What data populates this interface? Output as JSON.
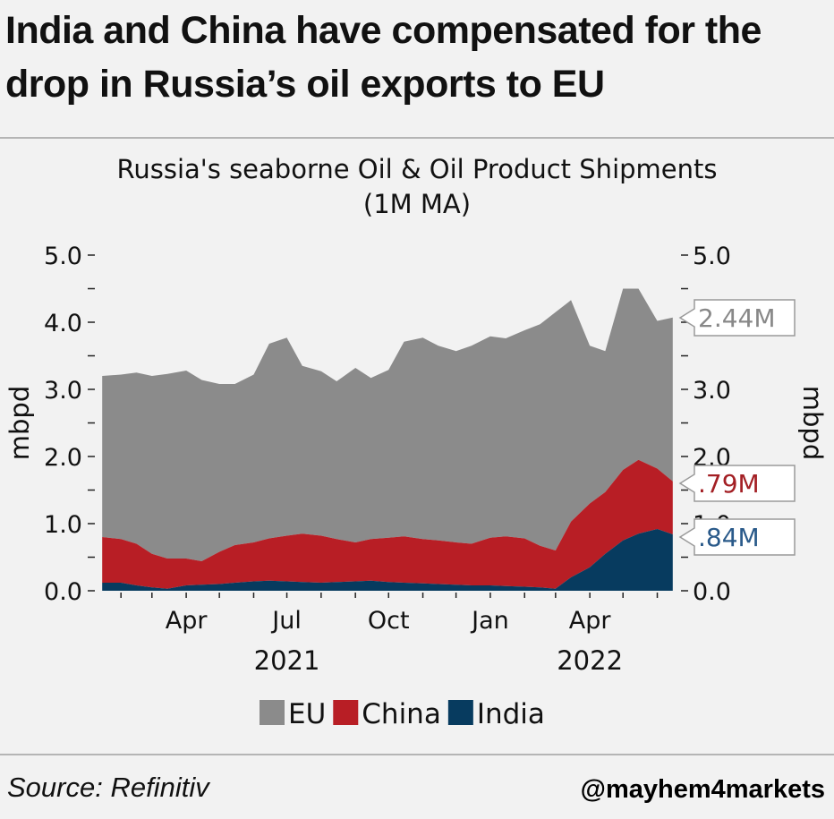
{
  "headline": "India and China have compensated for the drop in Russia’s oil exports to EU",
  "source": "Source: Refinitiv",
  "handle": "@mayhem4markets",
  "chart_data": {
    "type": "area",
    "stacked": true,
    "title": "Russia's seaborne Oil & Oil Product Shipments\n(1M MA)",
    "ylabel_left": "mbpd",
    "ylabel_right": "mbpd",
    "ylim": [
      0,
      5
    ],
    "yticks": [
      "0.0",
      "1.0",
      "2.0",
      "3.0",
      "4.0",
      "5.0"
    ],
    "x": [
      "2021-01-15",
      "2021-02-01",
      "2021-02-15",
      "2021-03-01",
      "2021-03-15",
      "2021-04-01",
      "2021-04-15",
      "2021-05-01",
      "2021-05-15",
      "2021-06-01",
      "2021-06-15",
      "2021-07-01",
      "2021-07-15",
      "2021-08-01",
      "2021-08-15",
      "2021-09-01",
      "2021-09-15",
      "2021-10-01",
      "2021-10-15",
      "2021-11-01",
      "2021-11-15",
      "2021-12-01",
      "2021-12-15",
      "2022-01-01",
      "2022-01-15",
      "2022-02-01",
      "2022-02-15",
      "2022-03-01",
      "2022-03-15",
      "2022-04-01",
      "2022-04-15",
      "2022-05-01",
      "2022-05-15",
      "2022-06-01",
      "2022-06-15"
    ],
    "xticks": [
      {
        "date": "2021-04-01",
        "label": "Apr"
      },
      {
        "date": "2021-07-01",
        "label": "Jul"
      },
      {
        "date": "2021-10-01",
        "label": "Oct"
      },
      {
        "date": "2022-01-01",
        "label": "Jan"
      },
      {
        "date": "2022-04-01",
        "label": "Apr"
      }
    ],
    "year_labels": [
      {
        "date": "2021-07-01",
        "label": "2021"
      },
      {
        "date": "2022-04-01",
        "label": "2022"
      }
    ],
    "series": [
      {
        "name": "India",
        "color": "#073b5f",
        "values": [
          0.12,
          0.12,
          0.08,
          0.05,
          0.03,
          0.08,
          0.09,
          0.1,
          0.12,
          0.14,
          0.15,
          0.14,
          0.13,
          0.12,
          0.13,
          0.14,
          0.15,
          0.13,
          0.12,
          0.11,
          0.1,
          0.09,
          0.08,
          0.08,
          0.07,
          0.06,
          0.05,
          0.03,
          0.2,
          0.35,
          0.55,
          0.75,
          0.85,
          0.92,
          0.84
        ]
      },
      {
        "name": "China",
        "color": "#b81e25",
        "values": [
          0.68,
          0.65,
          0.62,
          0.5,
          0.45,
          0.4,
          0.35,
          0.48,
          0.56,
          0.58,
          0.63,
          0.68,
          0.72,
          0.7,
          0.64,
          0.58,
          0.62,
          0.66,
          0.69,
          0.66,
          0.65,
          0.63,
          0.62,
          0.71,
          0.74,
          0.72,
          0.62,
          0.57,
          0.83,
          0.95,
          0.92,
          1.05,
          1.1,
          0.9,
          0.79
        ]
      },
      {
        "name": "EU",
        "color": "#8b8b8b",
        "values": [
          2.4,
          2.45,
          2.55,
          2.65,
          2.75,
          2.8,
          2.7,
          2.5,
          2.4,
          2.5,
          2.9,
          2.95,
          2.5,
          2.45,
          2.35,
          2.6,
          2.4,
          2.5,
          2.9,
          3.0,
          2.9,
          2.85,
          2.95,
          3.0,
          2.95,
          3.1,
          3.3,
          3.55,
          3.3,
          2.35,
          2.1,
          2.7,
          2.55,
          2.2,
          2.44
        ]
      }
    ],
    "end_labels": [
      {
        "series": "EU",
        "text": "2.44M",
        "color": "#888888"
      },
      {
        "series": "China",
        "text": ".79M",
        "color": "#a31f24"
      },
      {
        "series": "India",
        "text": ".84M",
        "color": "#2a5a8a"
      }
    ],
    "legend": {
      "position": "bottom",
      "entries": [
        {
          "name": "EU",
          "color": "#8b8b8b"
        },
        {
          "name": "China",
          "color": "#b81e25"
        },
        {
          "name": "India",
          "color": "#073b5f"
        }
      ]
    },
    "grid": false
  }
}
